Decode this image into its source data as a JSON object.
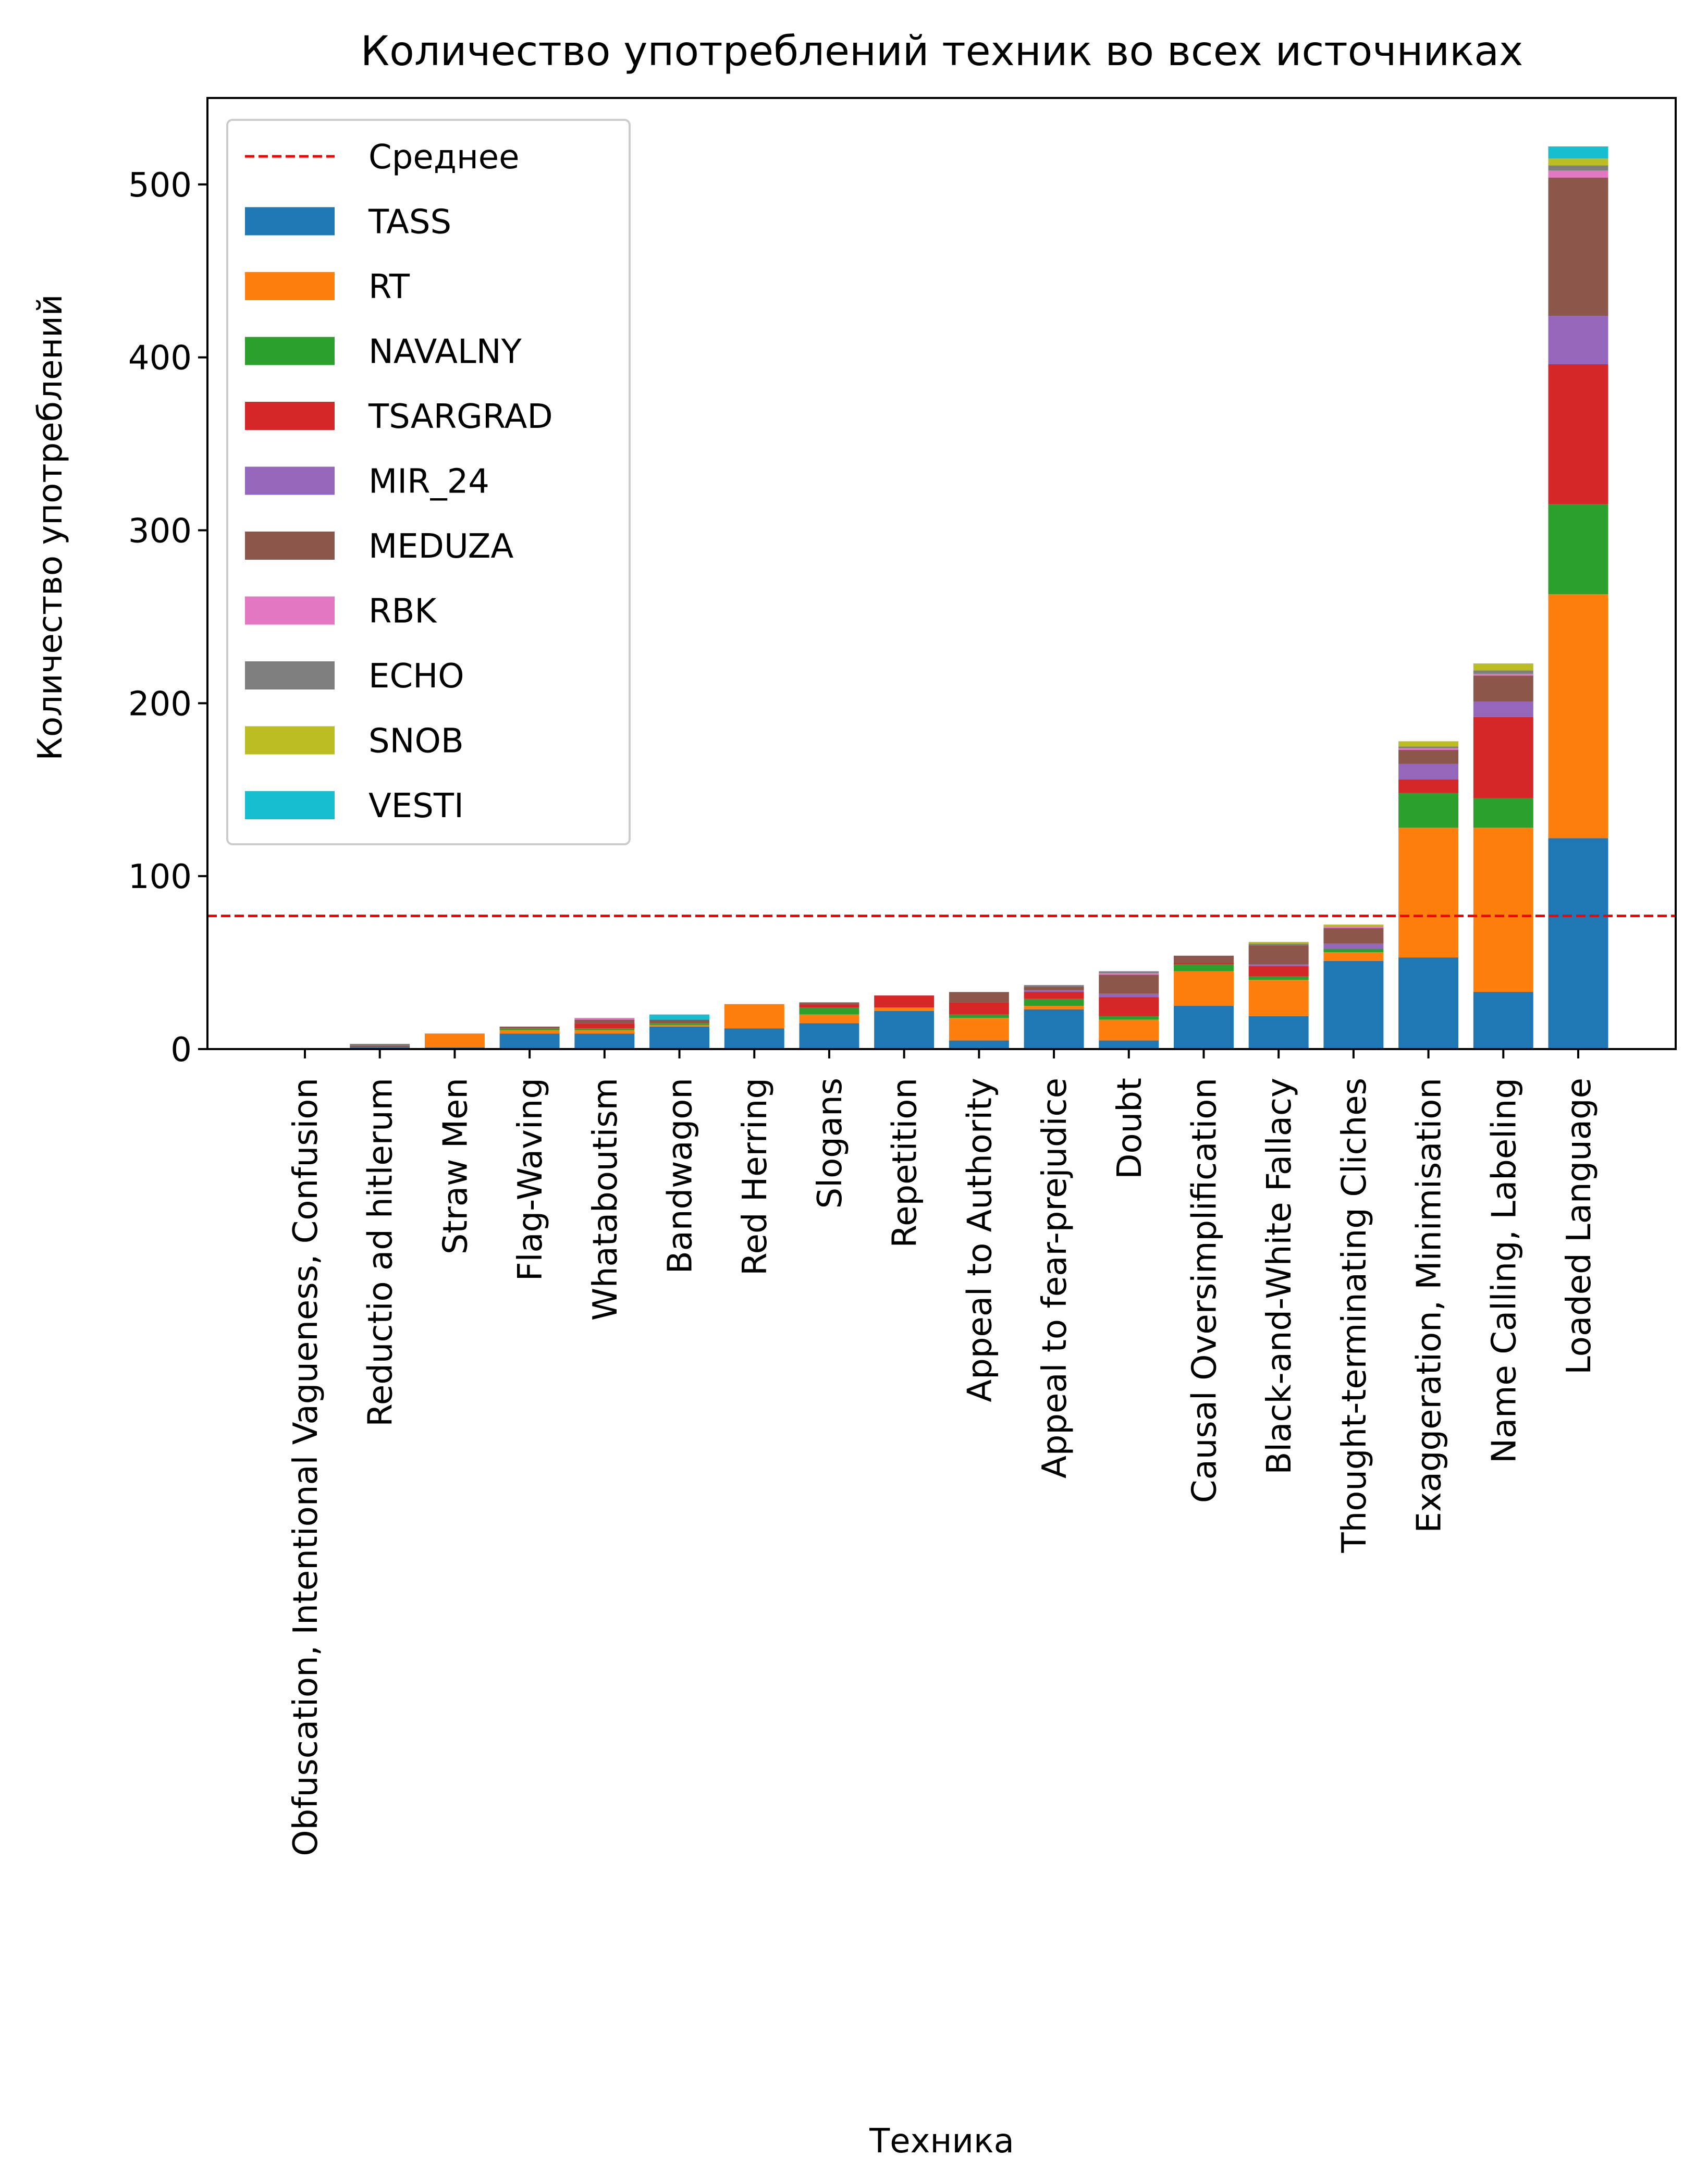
{
  "chart_data": {
    "type": "bar",
    "stacked": true,
    "title": "Количество употреблений техник во всех источниках",
    "xlabel": "Техника",
    "ylabel": "Количество употреблений",
    "ylim": [
      0,
      550
    ],
    "yticks": [
      0,
      100,
      200,
      300,
      400,
      500
    ],
    "grid": false,
    "legend_position": "top-left",
    "mean": {
      "label": "Среднее",
      "value": 77,
      "color": "#ff0000"
    },
    "categories": [
      "Obfuscation, Intentional Vagueness, Confusion",
      "Reductio ad hitlerum",
      "Straw Men",
      "Flag-Waving",
      "Whataboutism",
      "Bandwagon",
      "Red Herring",
      "Slogans",
      "Repetition",
      "Appeal to Authority",
      "Appeal to fear-prejudice",
      "Doubt",
      "Causal Oversimplification",
      "Black-and-White Fallacy",
      "Thought-terminating Cliches",
      "Exaggeration, Minimisation",
      "Name Calling, Labeling",
      "Loaded Language"
    ],
    "series": [
      {
        "name": "TASS",
        "color": "#1f77b4",
        "values": [
          0,
          1,
          1,
          9,
          9,
          13,
          12,
          15,
          22,
          5,
          23,
          5,
          25,
          19,
          51,
          53,
          33,
          122
        ]
      },
      {
        "name": "RT",
        "color": "#ff7f0e",
        "values": [
          0,
          0,
          8,
          2,
          2,
          1,
          14,
          5,
          2,
          13,
          2,
          12,
          20,
          21,
          5,
          75,
          95,
          141
        ]
      },
      {
        "name": "NAVALNY",
        "color": "#2ca02c",
        "values": [
          0,
          0,
          0,
          1,
          1,
          1,
          0,
          4,
          0,
          2,
          4,
          2,
          4,
          2,
          2,
          20,
          17,
          52
        ]
      },
      {
        "name": "TSARGRAD",
        "color": "#d62728",
        "values": [
          0,
          0,
          0,
          0,
          3,
          0,
          0,
          2,
          7,
          7,
          4,
          11,
          1,
          6,
          0,
          8,
          47,
          81
        ]
      },
      {
        "name": "MIR_24",
        "color": "#9467bd",
        "values": [
          0,
          0,
          0,
          0,
          0,
          0,
          0,
          0,
          0,
          0,
          1,
          2,
          0,
          1,
          3,
          9,
          9,
          28
        ]
      },
      {
        "name": "MEDUZA",
        "color": "#8c564b",
        "values": [
          0,
          1,
          0,
          1,
          2,
          2,
          0,
          1,
          0,
          6,
          2,
          11,
          4,
          11,
          9,
          8,
          15,
          80
        ]
      },
      {
        "name": "RBK",
        "color": "#e377c2",
        "values": [
          0,
          0,
          0,
          0,
          1,
          0,
          0,
          0,
          0,
          0,
          0,
          1,
          0,
          0,
          1,
          1,
          1,
          4
        ]
      },
      {
        "name": "ECHO",
        "color": "#7f7f7f",
        "values": [
          0,
          1,
          0,
          0,
          0,
          0,
          0,
          0,
          0,
          0,
          1,
          1,
          0,
          1,
          0,
          1,
          2,
          3
        ]
      },
      {
        "name": "SNOB",
        "color": "#bcbd22",
        "values": [
          0,
          0,
          0,
          0,
          0,
          0,
          0,
          0,
          0,
          0,
          0,
          0,
          0,
          1,
          1,
          3,
          4,
          4
        ]
      },
      {
        "name": "VESTI",
        "color": "#17becf",
        "values": [
          0,
          0,
          0,
          0,
          0,
          3,
          0,
          0,
          0,
          0,
          0,
          0,
          0,
          0,
          0,
          0,
          0,
          7
        ]
      }
    ]
  }
}
